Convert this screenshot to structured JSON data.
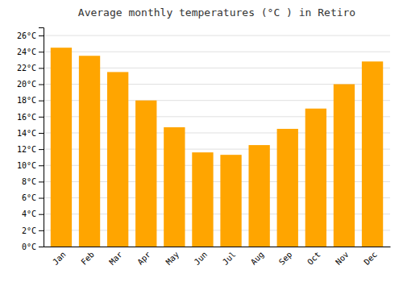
{
  "chart_data": {
    "type": "bar",
    "title": "Average monthly temperatures (°C ) in Retiro",
    "categories": [
      "Jan",
      "Feb",
      "Mar",
      "Apr",
      "May",
      "Jun",
      "Jul",
      "Aug",
      "Sep",
      "Oct",
      "Nov",
      "Dec"
    ],
    "values": [
      24.5,
      23.5,
      21.5,
      18.0,
      14.7,
      11.6,
      11.3,
      12.5,
      14.5,
      17.0,
      20.0,
      22.8
    ],
    "color": "#FFA500",
    "ylim": [
      0,
      27
    ],
    "yticks": [
      {
        "value": 0,
        "label": "0°C"
      },
      {
        "value": 2,
        "label": "2°C"
      },
      {
        "value": 4,
        "label": "4°C"
      },
      {
        "value": 6,
        "label": "6°C"
      },
      {
        "value": 8,
        "label": "8°C"
      },
      {
        "value": 10,
        "label": "10°C"
      },
      {
        "value": 12,
        "label": "12°C"
      },
      {
        "value": 14,
        "label": "14°C"
      },
      {
        "value": 16,
        "label": "16°C"
      },
      {
        "value": 18,
        "label": "18°C"
      },
      {
        "value": 20,
        "label": "20°C"
      },
      {
        "value": 22,
        "label": "22°C"
      },
      {
        "value": 24,
        "label": "24°C"
      },
      {
        "value": 26,
        "label": "26°C"
      }
    ],
    "grid": true
  }
}
